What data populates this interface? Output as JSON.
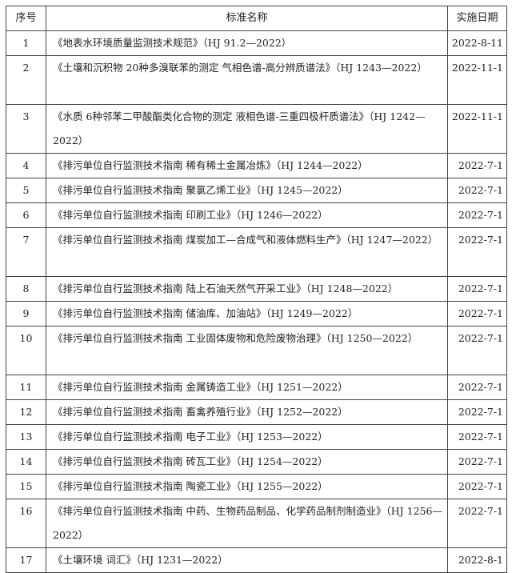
{
  "headers": {
    "no": "序号",
    "name": "标准名称",
    "date": "实施日期"
  },
  "rows": [
    {
      "no": "1",
      "name": "《地表水环境质量监测技术规范》（HJ 91.2—2022）",
      "date": "2022-8-11"
    },
    {
      "no": "2",
      "name": "《土壤和沉积物 20种多溴联苯的测定 气相色谱-高分辨质谱法》（HJ 1243—2022）",
      "date": "2022-11-1"
    },
    {
      "no": "3",
      "name": "《水质 6种邻苯二甲酸酯类化合物的测定 液相色谱-三重四极杆质谱法》（HJ 1242—2022）",
      "date": "2022-11-1"
    },
    {
      "no": "4",
      "name": "《排污单位自行监测技术指南 稀有稀土金属冶炼》（HJ 1244—2022）",
      "date": "2022-7-1"
    },
    {
      "no": "5",
      "name": "《排污单位自行监测技术指南 聚氯乙烯工业》（HJ 1245—2022）",
      "date": "2022-7-1"
    },
    {
      "no": "6",
      "name": "《排污单位自行监测技术指南 印刷工业》（HJ 1246—2022）",
      "date": "2022-7-1"
    },
    {
      "no": "7",
      "name": "《排污单位自行监测技术指南 煤炭加工—合成气和液体燃料生产》（HJ 1247—2022）",
      "date": "2022-7-1"
    },
    {
      "no": "8",
      "name": "《排污单位自行监测技术指南 陆上石油天然气开采工业》（HJ 1248—2022）",
      "date": "2022-7-1"
    },
    {
      "no": "9",
      "name": "《排污单位自行监测技术指南 储油库、加油站》（HJ 1249—2022）",
      "date": "2022-7-1"
    },
    {
      "no": "10",
      "name": "《排污单位自行监测技术指南 工业固体废物和危险废物治理》（HJ 1250—2022）",
      "date": "2022-7-1"
    },
    {
      "no": "11",
      "name": "《排污单位自行监测技术指南 金属铸造工业》（HJ 1251—2022）",
      "date": "2022-7-1"
    },
    {
      "no": "12",
      "name": "《排污单位自行监测技术指南 畜禽养殖行业》（HJ 1252—2022）",
      "date": "2022-7-1"
    },
    {
      "no": "13",
      "name": "《排污单位自行监测技术指南 电子工业》（HJ 1253—2022）",
      "date": "2022-7-1"
    },
    {
      "no": "14",
      "name": "《排污单位自行监测技术指南 砖瓦工业》（HJ 1254—2022）",
      "date": "2022-7-1"
    },
    {
      "no": "15",
      "name": "《排污单位自行监测技术指南 陶瓷工业》（HJ 1255—2022）",
      "date": "2022-7-1"
    },
    {
      "no": "16",
      "name": "《排污单位自行监测技术指南 中药、生物药品制品、化学药品制剂制造业》（HJ 1256—2022）",
      "date": "2022-7-1"
    },
    {
      "no": "17",
      "name": "《土壤环境 词汇》（HJ 1231—2022）",
      "date": "2022-8-1"
    }
  ]
}
